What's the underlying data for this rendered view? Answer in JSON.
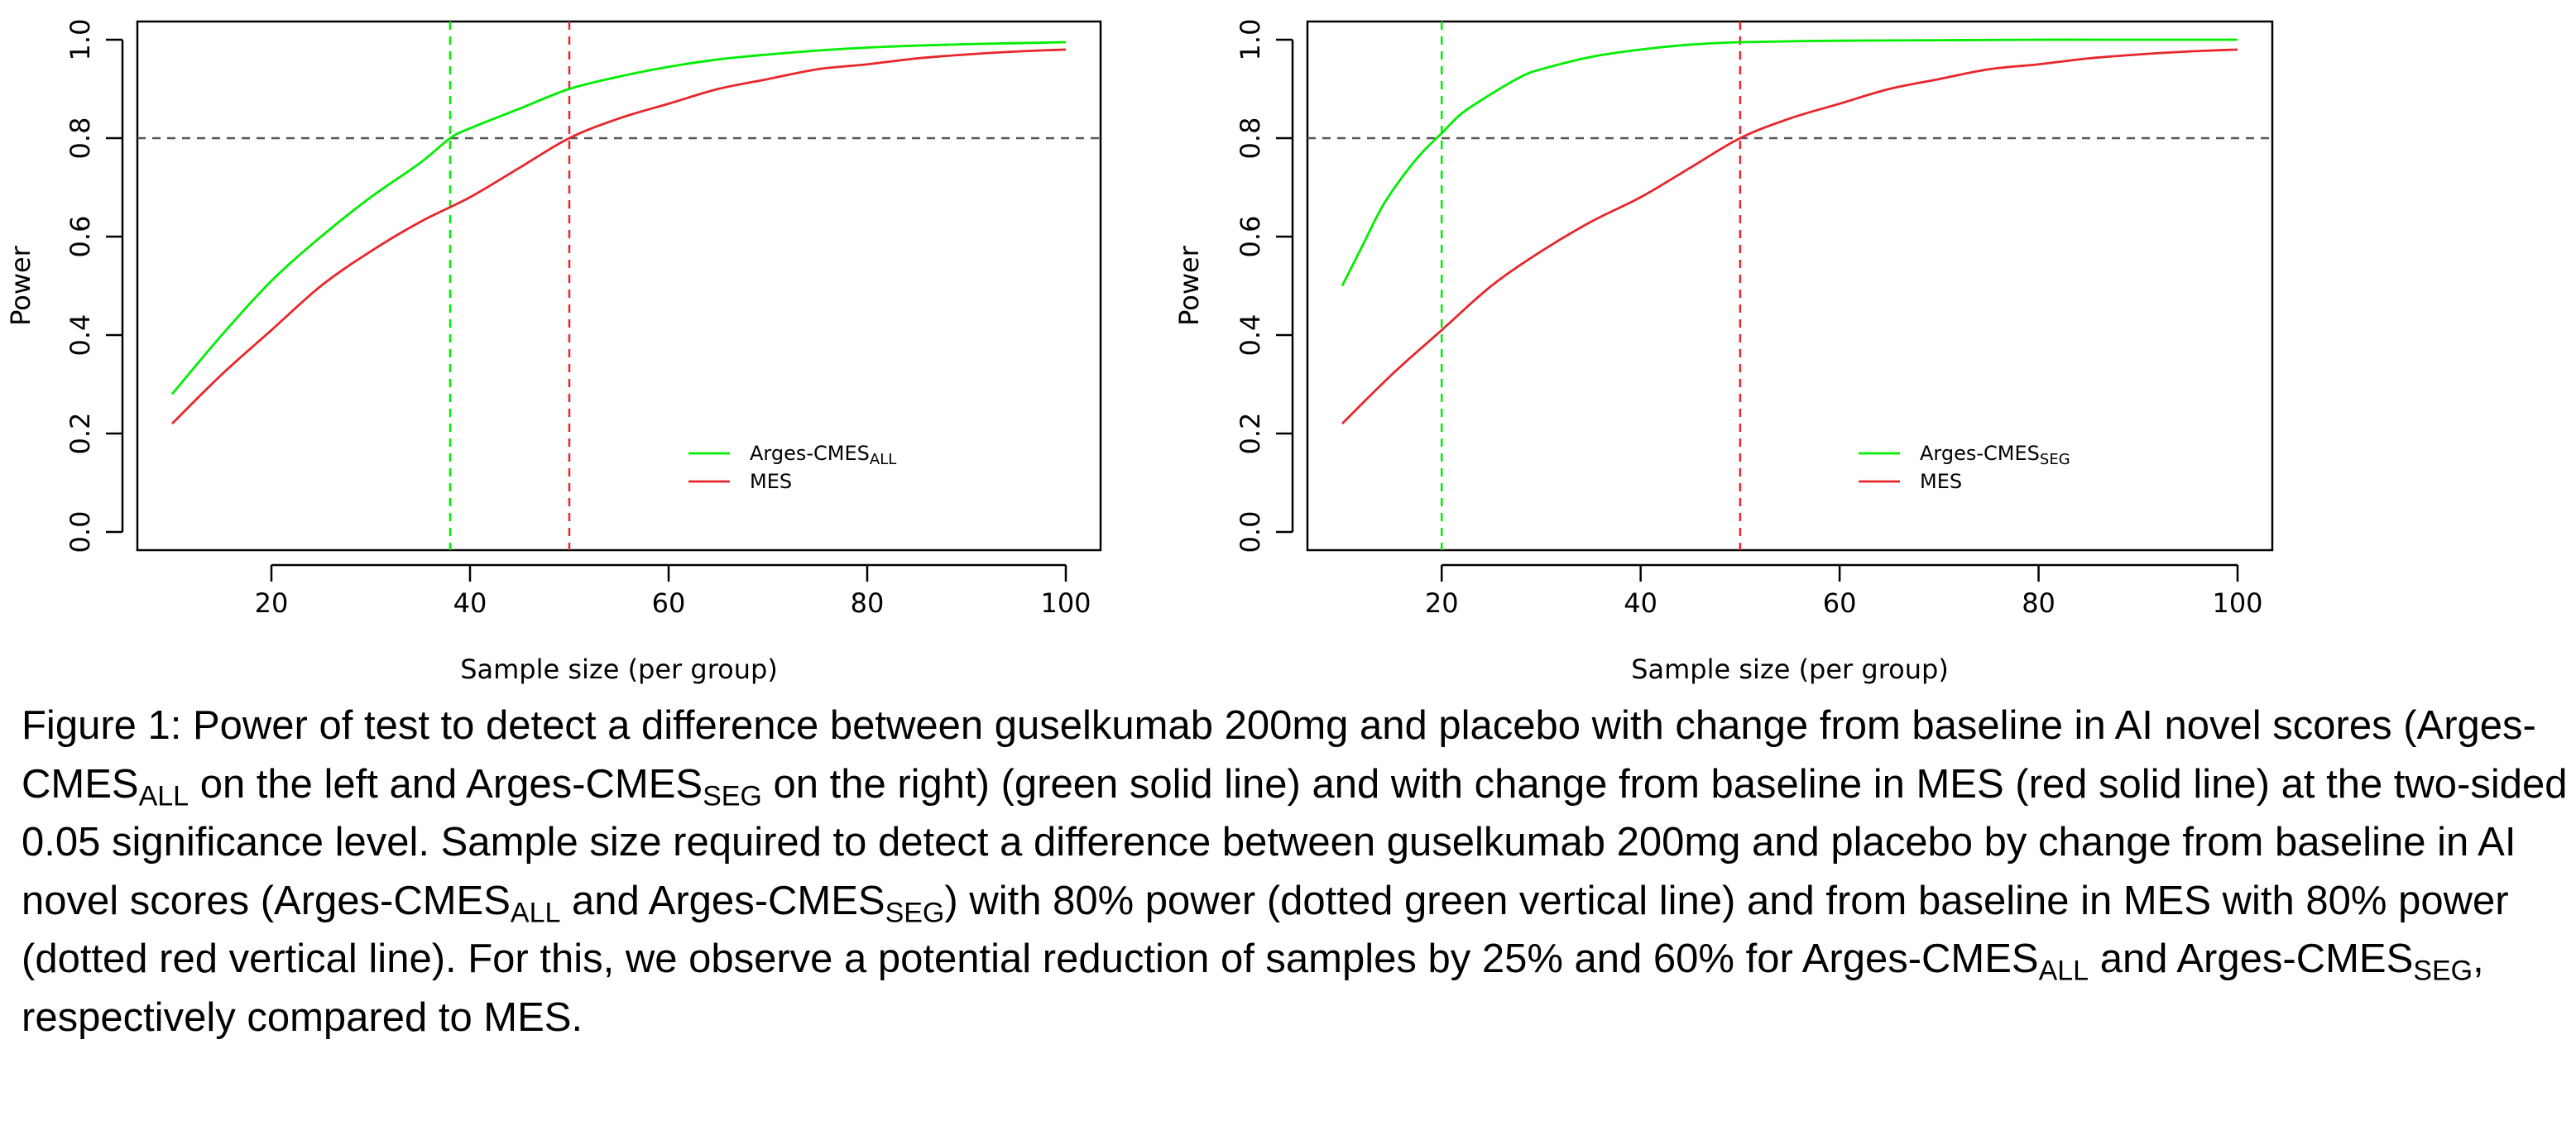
{
  "chart_data": [
    {
      "type": "line",
      "title": "",
      "xlabel": "Sample size (per group)",
      "ylabel": "Power",
      "xlim": [
        10,
        100
      ],
      "ylim": [
        0,
        1
      ],
      "xticks": [
        20,
        40,
        60,
        80,
        100
      ],
      "yticks": [
        0.0,
        0.2,
        0.4,
        0.6,
        0.8,
        1.0
      ],
      "ytick_labels": [
        "0.0",
        "0.2",
        "0.4",
        "0.6",
        "0.8",
        "1.0"
      ],
      "legend_position": "bottom-right",
      "series": [
        {
          "name": "Arges-CMES",
          "name_subscript": "ALL",
          "color": "#00ee00",
          "x": [
            10,
            15,
            20,
            25,
            30,
            35,
            38,
            40,
            45,
            50,
            55,
            60,
            65,
            70,
            75,
            80,
            85,
            90,
            95,
            100
          ],
          "y": [
            0.28,
            0.4,
            0.51,
            0.6,
            0.68,
            0.75,
            0.8,
            0.82,
            0.86,
            0.9,
            0.925,
            0.945,
            0.96,
            0.97,
            0.978,
            0.984,
            0.988,
            0.991,
            0.993,
            0.995
          ]
        },
        {
          "name": "MES",
          "color": "#e8262b",
          "x": [
            10,
            15,
            20,
            25,
            30,
            35,
            40,
            45,
            50,
            55,
            60,
            65,
            70,
            75,
            80,
            85,
            90,
            95,
            100
          ],
          "y": [
            0.22,
            0.32,
            0.41,
            0.5,
            0.57,
            0.63,
            0.68,
            0.74,
            0.8,
            0.84,
            0.87,
            0.9,
            0.92,
            0.94,
            0.95,
            0.962,
            0.97,
            0.976,
            0.98
          ]
        }
      ],
      "hlines": [
        {
          "y": 0.8,
          "color": "#555555",
          "style": "dashed"
        }
      ],
      "vlines": [
        {
          "x": 38,
          "color": "#00ee00",
          "style": "dashed"
        },
        {
          "x": 50,
          "color": "#e8262b",
          "style": "dashed"
        }
      ]
    },
    {
      "type": "line",
      "title": "",
      "xlabel": "Sample size (per group)",
      "ylabel": "Power",
      "xlim": [
        10,
        100
      ],
      "ylim": [
        0,
        1
      ],
      "xticks": [
        20,
        40,
        60,
        80,
        100
      ],
      "yticks": [
        0.0,
        0.2,
        0.4,
        0.6,
        0.8,
        1.0
      ],
      "ytick_labels": [
        "0.0",
        "0.2",
        "0.4",
        "0.6",
        "0.8",
        "1.0"
      ],
      "legend_position": "bottom-right",
      "series": [
        {
          "name": "Arges-CMES",
          "name_subscript": "SEG",
          "color": "#00ee00",
          "x": [
            10,
            12,
            14,
            16,
            18,
            20,
            22,
            25,
            28,
            30,
            35,
            40,
            45,
            50,
            60,
            70,
            80,
            90,
            100
          ],
          "y": [
            0.5,
            0.58,
            0.66,
            0.72,
            0.77,
            0.81,
            0.85,
            0.89,
            0.925,
            0.94,
            0.965,
            0.98,
            0.99,
            0.995,
            0.998,
            0.999,
            1.0,
            1.0,
            1.0
          ]
        },
        {
          "name": "MES",
          "color": "#e8262b",
          "x": [
            10,
            15,
            20,
            25,
            30,
            35,
            40,
            45,
            50,
            55,
            60,
            65,
            70,
            75,
            80,
            85,
            90,
            95,
            100
          ],
          "y": [
            0.22,
            0.32,
            0.41,
            0.5,
            0.57,
            0.63,
            0.68,
            0.74,
            0.8,
            0.84,
            0.87,
            0.9,
            0.92,
            0.94,
            0.95,
            0.962,
            0.97,
            0.976,
            0.98
          ]
        }
      ],
      "hlines": [
        {
          "y": 0.8,
          "color": "#555555",
          "style": "dashed"
        }
      ],
      "vlines": [
        {
          "x": 20,
          "color": "#00ee00",
          "style": "dashed"
        },
        {
          "x": 50,
          "color": "#e8262b",
          "style": "dashed"
        }
      ]
    }
  ],
  "caption": {
    "parts": [
      {
        "t": "Figure 1: Power of test to detect a difference between guselkumab 200mg and placebo with change from baseline in AI novel scores (Arges-CMES"
      },
      {
        "t": "ALL",
        "sub": true
      },
      {
        "t": " on the left and Arges-CMES"
      },
      {
        "t": "SEG",
        "sub": true
      },
      {
        "t": " on the right) (green solid line) and with change from baseline in MES (red solid line) at the two-sided 0.05 significance level. Sample size required to detect a difference between guselkumab 200mg and placebo by change from baseline in AI novel scores (Arges-CMES"
      },
      {
        "t": "ALL",
        "sub": true
      },
      {
        "t": " and Arges-CMES"
      },
      {
        "t": "SEG",
        "sub": true
      },
      {
        "t": ") with 80% power (dotted green vertical line) and from baseline in MES with 80% power (dotted red vertical line). For this, we observe a potential reduction of samples by 25% and 60% for Arges-CMES"
      },
      {
        "t": "ALL",
        "sub": true
      },
      {
        "t": " and Arges-CMES"
      },
      {
        "t": "SEG",
        "sub": true
      },
      {
        "t": ", respectively compared to MES."
      }
    ]
  }
}
